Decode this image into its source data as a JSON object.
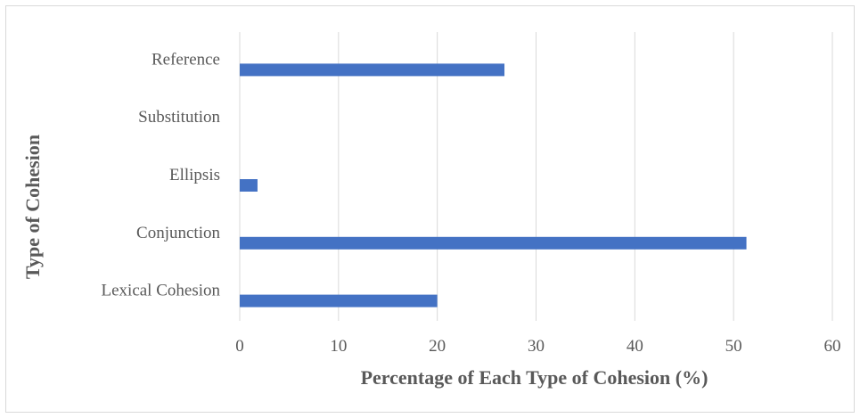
{
  "chart_data": {
    "type": "bar",
    "orientation": "horizontal",
    "title": "",
    "xlabel": "Percentage of Each Type of Cohesion (%)",
    "ylabel": "Type of Cohesion",
    "categories": [
      "Reference",
      "Substitution",
      "Ellipsis",
      "Conjunction",
      "Lexical Cohesion"
    ],
    "values": [
      26.8,
      0,
      1.8,
      51.3,
      20.0
    ],
    "xlim": [
      0,
      60
    ],
    "xticks": [
      0,
      10,
      20,
      30,
      40,
      50,
      60
    ],
    "grid": true,
    "legend": "none",
    "bar_color": "#4472C4",
    "grid_color": "#d9d9d9"
  }
}
